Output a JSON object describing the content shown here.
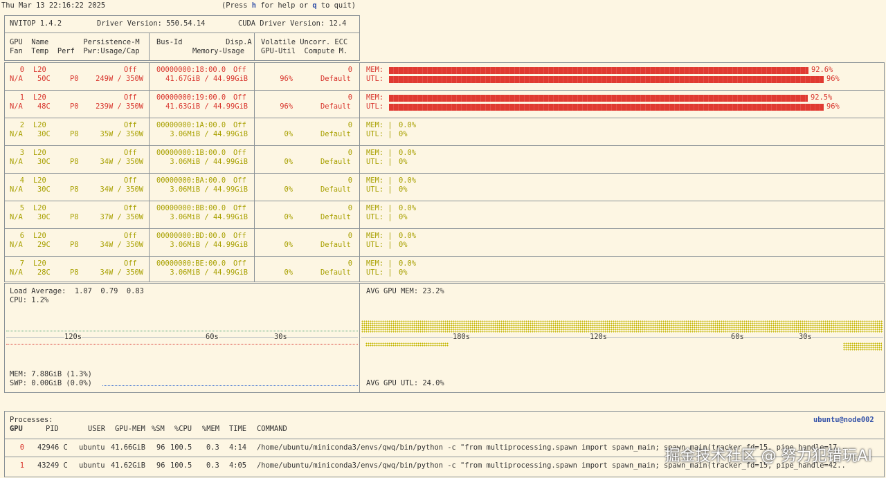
{
  "topbar": {
    "datetime": "Thu Mar 13 22:16:22 2025",
    "help_prefix": "(Press ",
    "help_key": "h",
    "help_mid": " for help or ",
    "quit_key": "q",
    "help_suffix": " to quit)"
  },
  "header": {
    "nvitop": "NVITOP 1.4.2",
    "driver": "Driver Version: 550.54.14",
    "cuda": "CUDA Driver Version: 12.4",
    "col1_l1": "GPU  Name        Persistence-M",
    "col1_l2": "Fan  Temp  Perf  Pwr:Usage/Cap",
    "col2_l1": "Bus-Id          Disp.A",
    "col2_l2": "Memory-Usage",
    "col3_l1": "Volatile Uncorr. ECC",
    "col3_l2": "GPU-Util  Compute M."
  },
  "gpus": [
    {
      "id": "0",
      "name": "L20",
      "persist": "Off",
      "fan": "N/A",
      "temp": "50C",
      "perf": "P0",
      "pwr": "249W / 350W",
      "bus": "00000000:18:00.0",
      "disp": "Off",
      "mem": "41.67GiB / 44.99GiB",
      "ecc": "0",
      "util": "96%",
      "compute": "Default",
      "mem_label": "MEM:",
      "utl_label": "UTL:",
      "mem_pct": "92.6%",
      "utl_pct": "96%",
      "mem_frac": 0.926,
      "utl_frac": 0.96,
      "status": "busy"
    },
    {
      "id": "1",
      "name": "L20",
      "persist": "Off",
      "fan": "N/A",
      "temp": "48C",
      "perf": "P0",
      "pwr": "239W / 350W",
      "bus": "00000000:19:00.0",
      "disp": "Off",
      "mem": "41.63GiB / 44.99GiB",
      "ecc": "0",
      "util": "96%",
      "compute": "Default",
      "mem_label": "MEM:",
      "utl_label": "UTL:",
      "mem_pct": "92.5%",
      "utl_pct": "96%",
      "mem_frac": 0.925,
      "utl_frac": 0.96,
      "status": "busy"
    },
    {
      "id": "2",
      "name": "L20",
      "persist": "Off",
      "fan": "N/A",
      "temp": "30C",
      "perf": "P8",
      "pwr": "35W / 350W",
      "bus": "00000000:1A:00.0",
      "disp": "Off",
      "mem": "3.06MiB / 44.99GiB",
      "ecc": "0",
      "util": "0%",
      "compute": "Default",
      "mem_label": "MEM: |",
      "utl_label": "UTL: |",
      "mem_pct": "0.0%",
      "utl_pct": "0%",
      "mem_frac": 0,
      "utl_frac": 0,
      "status": "idle"
    },
    {
      "id": "3",
      "name": "L20",
      "persist": "Off",
      "fan": "N/A",
      "temp": "30C",
      "perf": "P8",
      "pwr": "34W / 350W",
      "bus": "00000000:1B:00.0",
      "disp": "Off",
      "mem": "3.06MiB / 44.99GiB",
      "ecc": "0",
      "util": "0%",
      "compute": "Default",
      "mem_label": "MEM: |",
      "utl_label": "UTL: |",
      "mem_pct": "0.0%",
      "utl_pct": "0%",
      "mem_frac": 0,
      "utl_frac": 0,
      "status": "idle"
    },
    {
      "id": "4",
      "name": "L20",
      "persist": "Off",
      "fan": "N/A",
      "temp": "30C",
      "perf": "P8",
      "pwr": "34W / 350W",
      "bus": "00000000:BA:00.0",
      "disp": "Off",
      "mem": "3.06MiB / 44.99GiB",
      "ecc": "0",
      "util": "0%",
      "compute": "Default",
      "mem_label": "MEM: |",
      "utl_label": "UTL: |",
      "mem_pct": "0.0%",
      "utl_pct": "0%",
      "mem_frac": 0,
      "utl_frac": 0,
      "status": "idle"
    },
    {
      "id": "5",
      "name": "L20",
      "persist": "Off",
      "fan": "N/A",
      "temp": "30C",
      "perf": "P8",
      "pwr": "37W / 350W",
      "bus": "00000000:BB:00.0",
      "disp": "Off",
      "mem": "3.06MiB / 44.99GiB",
      "ecc": "0",
      "util": "0%",
      "compute": "Default",
      "mem_label": "MEM: |",
      "utl_label": "UTL: |",
      "mem_pct": "0.0%",
      "utl_pct": "0%",
      "mem_frac": 0,
      "utl_frac": 0,
      "status": "idle"
    },
    {
      "id": "6",
      "name": "L20",
      "persist": "Off",
      "fan": "N/A",
      "temp": "29C",
      "perf": "P8",
      "pwr": "34W / 350W",
      "bus": "00000000:BD:00.0",
      "disp": "Off",
      "mem": "3.06MiB / 44.99GiB",
      "ecc": "0",
      "util": "0%",
      "compute": "Default",
      "mem_label": "MEM: |",
      "utl_label": "UTL: |",
      "mem_pct": "0.0%",
      "utl_pct": "0%",
      "mem_frac": 0,
      "utl_frac": 0,
      "status": "idle"
    },
    {
      "id": "7",
      "name": "L20",
      "persist": "Off",
      "fan": "N/A",
      "temp": "28C",
      "perf": "P8",
      "pwr": "34W / 350W",
      "bus": "00000000:BE:00.0",
      "disp": "Off",
      "mem": "3.06MiB / 44.99GiB",
      "ecc": "0",
      "util": "0%",
      "compute": "Default",
      "mem_label": "MEM: |",
      "utl_label": "UTL: |",
      "mem_pct": "0.0%",
      "utl_pct": "0%",
      "mem_frac": 0,
      "utl_frac": 0,
      "status": "idle"
    }
  ],
  "host": {
    "load_average": "Load Average:  1.07  0.79  0.83",
    "cpu": "CPU: 1.2%",
    "mem": "MEM: 7.88GiB (1.3%)",
    "swp": "SWP: 0.00GiB (0.0%)",
    "left_ticks": [
      "120s",
      "60s",
      "30s"
    ],
    "avg_gpu_mem": "AVG GPU MEM: 23.2%",
    "avg_gpu_utl": "AVG GPU UTL: 24.0%",
    "right_ticks": [
      "180s",
      "120s",
      "60s",
      "30s"
    ]
  },
  "processes": {
    "title": "Processes:",
    "user_host": "ubuntu@node002",
    "columns": {
      "gpu": "GPU",
      "pid": "PID",
      "user": "USER",
      "gpumem": "GPU-MEM",
      "sm": "%SM",
      "cpu": "%CPU",
      "mem": "%MEM",
      "time": "TIME",
      "command": "COMMAND"
    },
    "rows": [
      {
        "gpu": "0",
        "pid": "42946 C",
        "user": "ubuntu",
        "gpumem": "41.66GiB",
        "sm": "96",
        "cpu": "100.5",
        "mem": "0.3",
        "time": "4:14",
        "command": "/home/ubuntu/miniconda3/envs/qwq/bin/python -c \"from multiprocessing.spawn import spawn_main; spawn_main(tracker_fd=15, pipe_handle=17.."
      },
      {
        "gpu": "1",
        "pid": "43249 C",
        "user": "ubuntu",
        "gpumem": "41.62GiB",
        "sm": "96",
        "cpu": "100.5",
        "mem": "0.3",
        "time": "4:05",
        "command": "/home/ubuntu/miniconda3/envs/qwq/bin/python -c \"from multiprocessing.spawn import spawn_main; spawn_main(tracker_fd=15, pipe_handle=42.."
      }
    ]
  },
  "watermark": "掘金技术社区 @ 努力犯错玩AI",
  "colors": {
    "busy": "#d8342c",
    "idle": "#a8a000",
    "border": "#8a9297",
    "background": "#fdf6e3"
  }
}
